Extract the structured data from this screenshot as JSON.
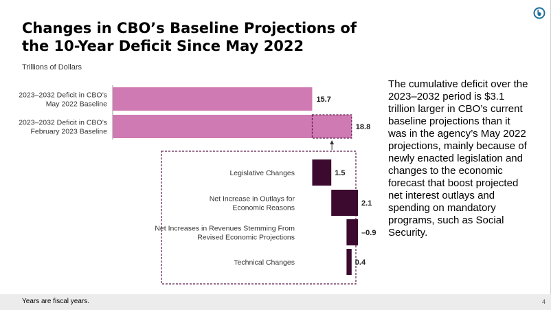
{
  "slide": {
    "title": "Changes in CBO’s Baseline Projections of the 10-Year Deficit Since May 2022",
    "unit_label": "Trillions of Dollars",
    "body_text": "The cumulative deficit over the 2023–2032 period is $3.1 trillion larger in CBO’s current baseline projections than it was in the agency’s May 2022 projections, mainly because of newly enacted legislation and changes to the economic forecast that boost projected net interest outlays and spending on mandatory programs, such as Social Security.",
    "footnote": "Years are fiscal years.",
    "page_number": "4",
    "logo_icon": "cbo-logo-icon"
  },
  "colors": {
    "baseline_bar": "#d07ab3",
    "change_bar": "#3b0a2e",
    "dashed_outline": "#5a1a4a",
    "logo": "#1f6f9c"
  },
  "chart_data": {
    "type": "bar",
    "orientation": "horizontal",
    "title": "",
    "xlabel": "",
    "ylabel": "Trillions of Dollars",
    "baselines": [
      {
        "label_lines": [
          "2023–2032 Deficit in CBO’s",
          "May 2022 Baseline"
        ],
        "value": 15.7,
        "value_label": "15.7"
      },
      {
        "label_lines": [
          "2023–2032 Deficit in CBO’s",
          "February 2023 Baseline"
        ],
        "value": 18.8,
        "value_label": "18.8"
      }
    ],
    "changes": [
      {
        "label_lines": [
          "Legislative Changes"
        ],
        "value": 1.5,
        "value_label": "1.5"
      },
      {
        "label_lines": [
          "Net Increase in Outlays for",
          "Economic Reasons"
        ],
        "value": 2.1,
        "value_label": "2.1"
      },
      {
        "label_lines": [
          "Net Increases in Revenues Stemming From",
          "Revised Economic Projections"
        ],
        "value": -0.9,
        "value_label": "–0.9"
      },
      {
        "label_lines": [
          "Technical Changes"
        ],
        "value": 0.4,
        "value_label": "0.4"
      }
    ]
  }
}
